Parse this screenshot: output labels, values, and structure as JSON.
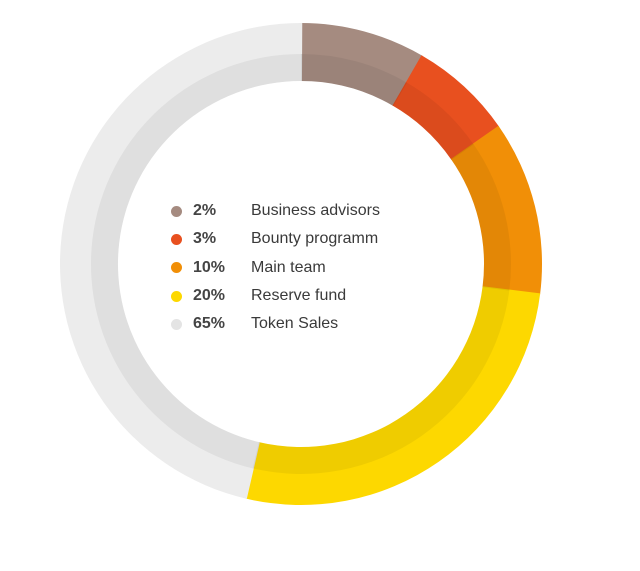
{
  "chart_data": {
    "type": "pie",
    "donut": true,
    "title": "",
    "categories": [
      "Business advisors",
      "Bounty programm",
      "Main team",
      "Reserve fund",
      "Token Sales"
    ],
    "values": [
      2,
      3,
      10,
      20,
      65
    ],
    "labels": [
      "2%",
      "3%",
      "10%",
      "20%",
      "65%"
    ],
    "colors": [
      "#a58b80",
      "#e8501f",
      "#f18f07",
      "#fdd800",
      "#ececec"
    ],
    "legend": "center"
  }
}
